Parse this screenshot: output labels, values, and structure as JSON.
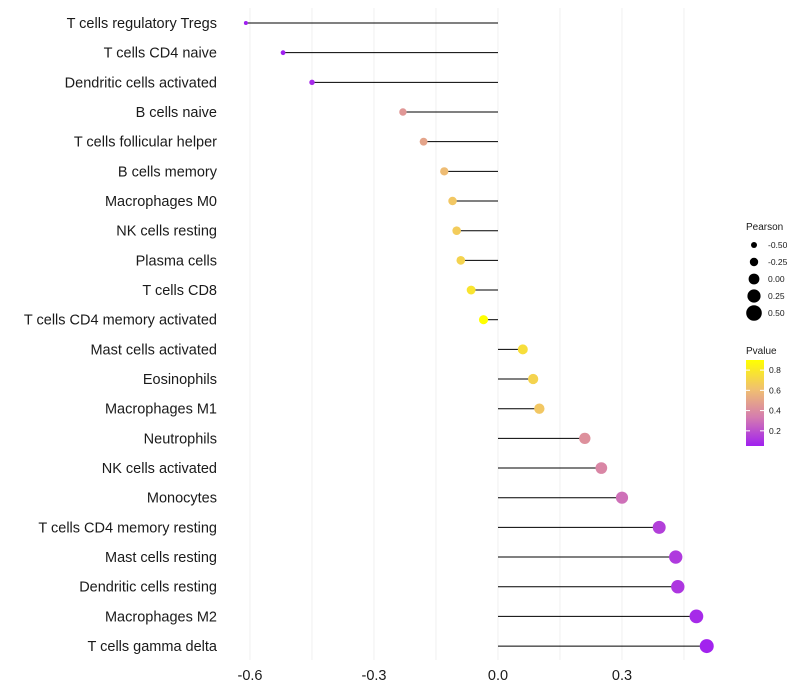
{
  "chart_data": {
    "type": "lollipop",
    "title": "",
    "xlabel": "",
    "ylabel": "",
    "xlim": [
      -0.66,
      0.56
    ],
    "xticks": [
      -0.6,
      -0.3,
      0.0,
      0.3
    ],
    "xtick_labels": [
      "-0.6",
      "-0.3",
      "0.0",
      "0.3"
    ],
    "categories": [
      "T cells regulatory  Tregs",
      "T cells CD4 naive",
      "Dendritic cells activated",
      "B cells naive",
      "T cells follicular helper",
      "B cells memory",
      "Macrophages M0",
      "NK cells resting",
      "Plasma cells",
      "T cells CD8",
      "T cells CD4 memory activated",
      "Mast cells activated",
      "Eosinophils",
      "Macrophages M1",
      "Neutrophils",
      "NK cells activated",
      "Monocytes",
      "T cells CD4 memory resting",
      "Mast cells resting",
      "Dendritic cells resting",
      "Macrophages M2",
      "T cells gamma delta"
    ],
    "values": [
      -0.61,
      -0.52,
      -0.45,
      -0.23,
      -0.18,
      -0.13,
      -0.11,
      -0.1,
      -0.09,
      -0.065,
      -0.035,
      0.06,
      0.085,
      0.1,
      0.21,
      0.25,
      0.3,
      0.39,
      0.43,
      0.435,
      0.48,
      0.505
    ],
    "pvalues": [
      0.02,
      0.05,
      0.08,
      0.45,
      0.5,
      0.6,
      0.65,
      0.67,
      0.7,
      0.78,
      0.95,
      0.75,
      0.7,
      0.65,
      0.42,
      0.38,
      0.3,
      0.15,
      0.13,
      0.12,
      0.08,
      0.06
    ],
    "legend_pearson": {
      "title": "Pearson",
      "values": [
        -0.5,
        -0.25,
        0.0,
        0.25,
        0.5
      ],
      "labels": [
        "-0.50",
        "-0.25",
        "0.00",
        "0.25",
        "0.50"
      ]
    },
    "legend_pvalue": {
      "title": "Pvalue",
      "range": [
        0.05,
        0.9
      ],
      "ticks": [
        0.2,
        0.4,
        0.6,
        0.8
      ],
      "tick_labels": [
        "0.2",
        "0.4",
        "0.6",
        "0.8"
      ],
      "colors": [
        "#a020f0",
        "#d47bb0",
        "#f0c070",
        "#ffff00"
      ]
    },
    "grid": true,
    "legend_position": "right"
  }
}
